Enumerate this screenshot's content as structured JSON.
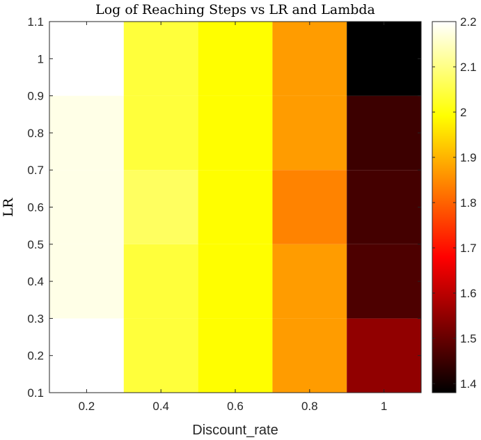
{
  "chart_data": {
    "type": "heatmap",
    "title": "Log of Reaching Steps vs LR and Lambda",
    "xlabel": "Discount_rate",
    "ylabel": "LR",
    "x": [
      0.2,
      0.4,
      0.6,
      0.8,
      1
    ],
    "y": [
      0.2,
      0.4,
      0.6,
      0.8,
      1
    ],
    "xlim": [
      0.1,
      1.1
    ],
    "ylim": [
      0.1,
      1.1
    ],
    "xticks": [
      "0.2",
      "0.4",
      "0.6",
      "0.8",
      "1"
    ],
    "yticks": [
      "0.1",
      "0.2",
      "0.3",
      "0.4",
      "0.5",
      "0.6",
      "0.7",
      "0.8",
      "0.9",
      "1",
      "1.1"
    ],
    "colormap": "hot",
    "clim": [
      1.38,
      2.2
    ],
    "colorbar_ticks": [
      "1.4",
      "1.5",
      "1.6",
      "1.7",
      "1.8",
      "1.9",
      "2",
      "2.1",
      "2.2"
    ],
    "values": [
      [
        2.2,
        2.04,
        1.99,
        1.87,
        1.55
      ],
      [
        2.18,
        2.04,
        1.99,
        1.87,
        1.47
      ],
      [
        2.18,
        2.07,
        1.99,
        1.84,
        1.46
      ],
      [
        2.18,
        2.04,
        1.99,
        1.87,
        1.45
      ],
      [
        2.2,
        2.04,
        1.99,
        1.87,
        1.38
      ]
    ],
    "grid": false
  }
}
